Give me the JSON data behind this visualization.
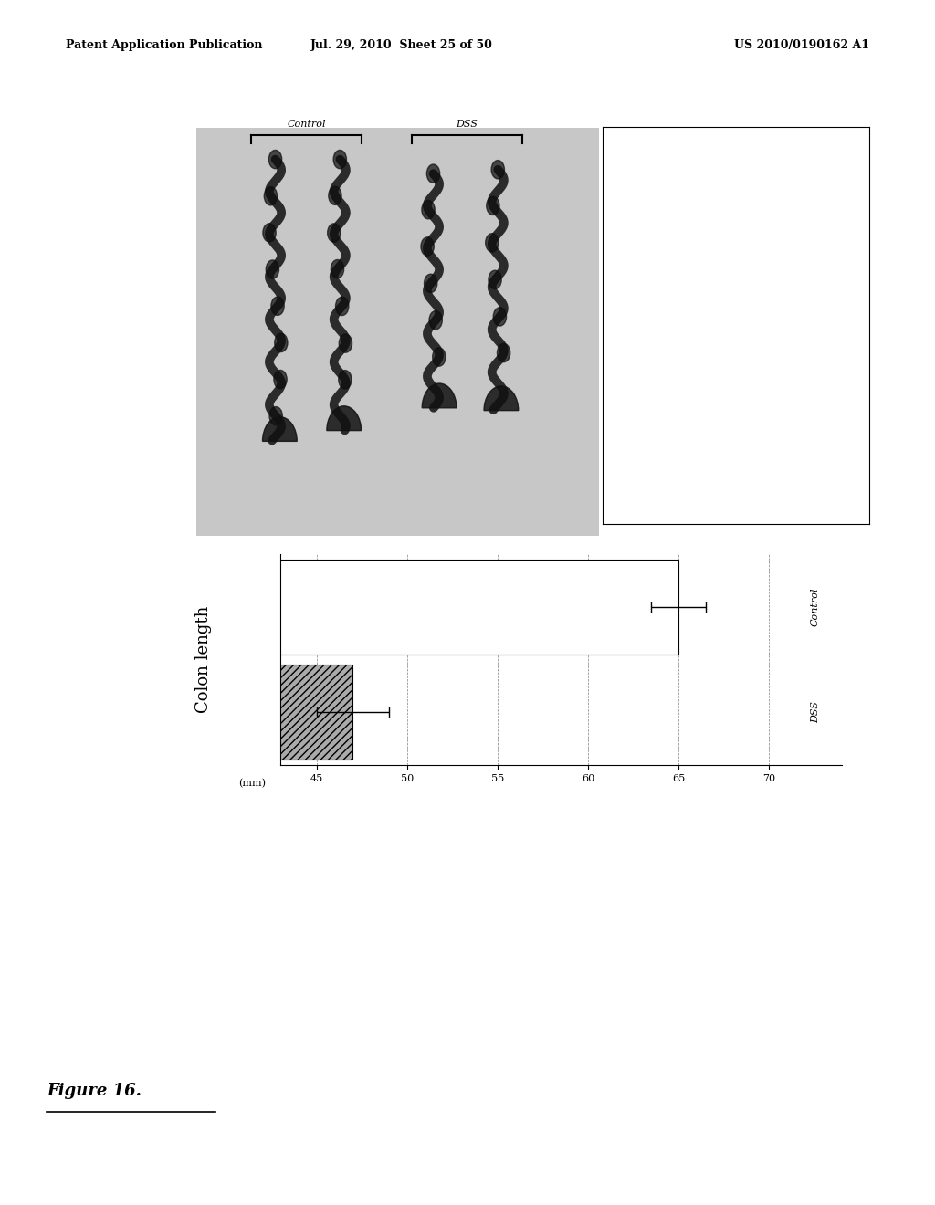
{
  "header_left": "Patent Application Publication",
  "header_mid": "Jul. 29, 2010  Sheet 25 of 50",
  "header_right": "US 2010/0190162 A1",
  "figure_label": "Figure 16.",
  "chart_ylabel": "Colon length",
  "chart_xlabel": "(mm)",
  "bar_labels": [
    "Control",
    "DSS"
  ],
  "bar_values": [
    65.0,
    47.0
  ],
  "bar_errors": [
    1.5,
    2.0
  ],
  "xlim": [
    43,
    72
  ],
  "xticks": [
    70,
    65,
    60,
    55,
    50,
    45
  ],
  "bar_colors": [
    "white",
    "lightgray"
  ],
  "background_color": "#d8d8d8",
  "photo_label_control": "Control",
  "photo_label_dss": "DSS"
}
